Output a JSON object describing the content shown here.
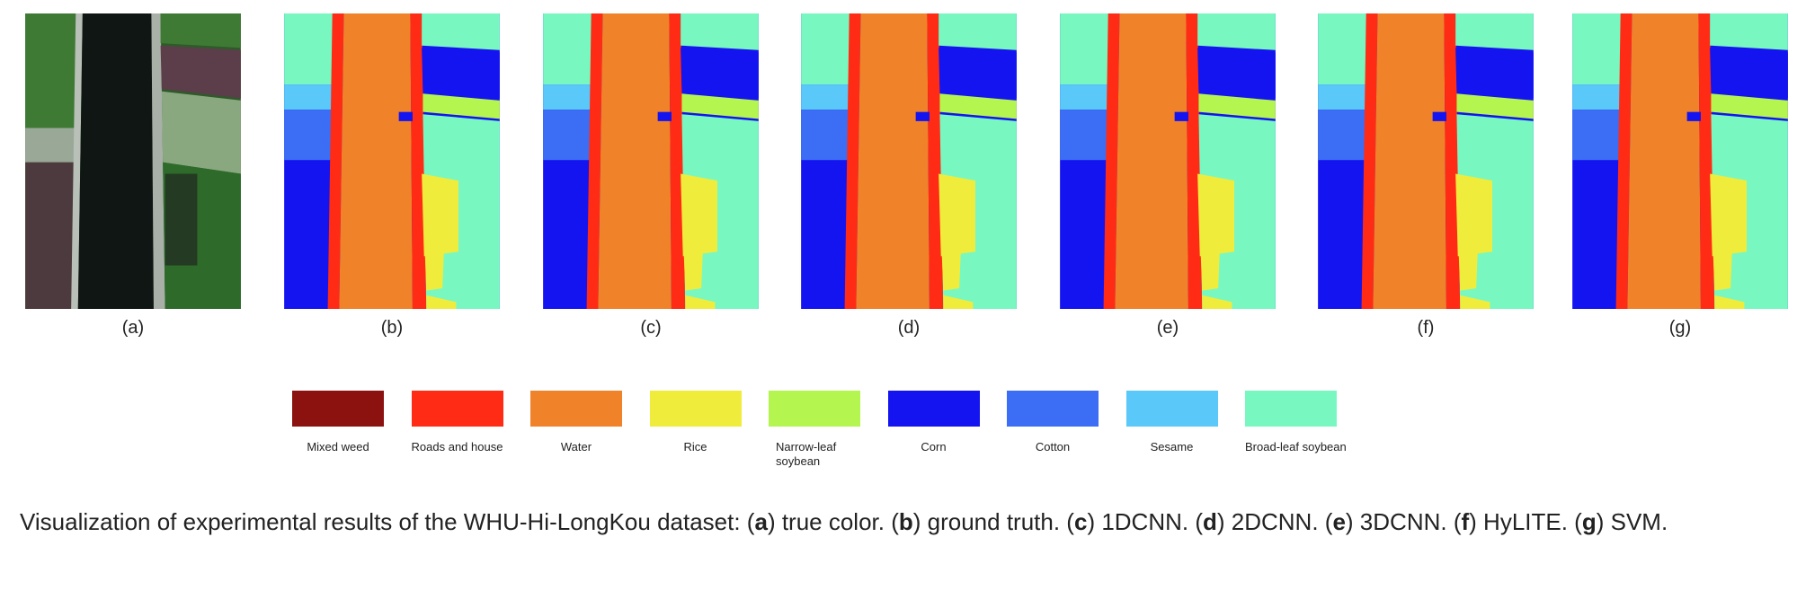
{
  "figure": {
    "panels": [
      {
        "label": "(a)",
        "kind": "true-color"
      },
      {
        "label": "(b)",
        "kind": "map"
      },
      {
        "label": "(c)",
        "kind": "map"
      },
      {
        "label": "(d)",
        "kind": "map"
      },
      {
        "label": "(e)",
        "kind": "map"
      },
      {
        "label": "(f)",
        "kind": "map"
      },
      {
        "label": "(g)",
        "kind": "map"
      }
    ],
    "legend": [
      {
        "label": "Mixed weed",
        "color": "#8c1210"
      },
      {
        "label": "Roads and house",
        "color": "#ff2b14"
      },
      {
        "label": "Water",
        "color": "#f0822a"
      },
      {
        "label": "Rice",
        "color": "#f0ec3c"
      },
      {
        "label": "Narrow-leaf soybean",
        "color": "#b4f550"
      },
      {
        "label": "Corn",
        "color": "#1414f0"
      },
      {
        "label": "Cotton",
        "color": "#3c6ef5"
      },
      {
        "label": "Sesame",
        "color": "#5ac8f8"
      },
      {
        "label": "Broad-leaf soybean",
        "color": "#78f8c0"
      }
    ],
    "caption": [
      "Visualization of experimental results of the WHU-Hi-LongKou dataset: (",
      "a",
      ") true color. (",
      "b",
      ") ground truth. (",
      "c",
      ") 1DCNN. (",
      "d",
      ") 2DCNN. (",
      "e",
      ") 3DCNN. (",
      "f",
      ") HyLITE. (",
      "g",
      ") SVM."
    ]
  }
}
